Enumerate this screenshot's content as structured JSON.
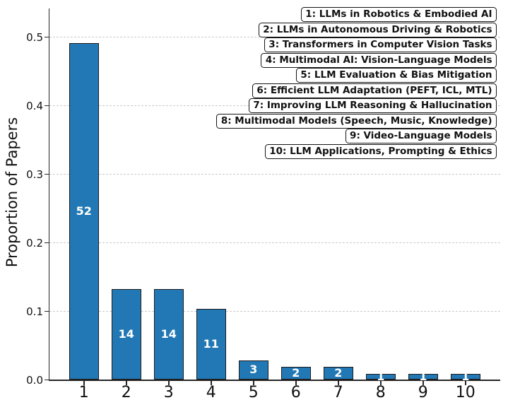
{
  "chart_data": {
    "type": "bar",
    "title": "",
    "xlabel": "",
    "ylabel": "Proportion of Papers",
    "categories": [
      "1",
      "2",
      "3",
      "4",
      "5",
      "6",
      "7",
      "8",
      "9",
      "10"
    ],
    "counts": [
      52,
      14,
      14,
      11,
      3,
      2,
      2,
      1,
      1,
      1
    ],
    "proportions": [
      0.491,
      0.132,
      0.132,
      0.104,
      0.028,
      0.019,
      0.019,
      0.009,
      0.009,
      0.009
    ],
    "bar_labels": [
      "52",
      "14",
      "14",
      "11",
      "3",
      "2",
      "2",
      "1",
      "1",
      "1"
    ],
    "yticks": [
      "0.0",
      "0.1",
      "0.2",
      "0.3",
      "0.4",
      "0.5"
    ],
    "ytick_values": [
      0.0,
      0.1,
      0.2,
      0.3,
      0.4,
      0.5
    ],
    "ylim": [
      0.0,
      0.54
    ],
    "grid": "horizontal-dashed",
    "legend_position": "upper-right",
    "legend": [
      "1: LLMs in Robotics & Embodied AI",
      "2: LLMs in Autonomous Driving & Robotics",
      "3: Transformers in Computer Vision Tasks",
      "4: Multimodal AI: Vision-Language Models",
      "5: LLM Evaluation & Bias Mitigation",
      "6: Efficient LLM Adaptation (PEFT, ICL, MTL)",
      "7: Improving LLM Reasoning & Hallucination",
      "8: Multimodal Models (Speech, Music, Knowledge)",
      "9: Video-Language Models",
      "10: LLM Applications, Prompting & Ethics"
    ],
    "colors": {
      "bar_fill": "#2278b5",
      "bar_edge": "#1a1a1a",
      "bar_label_text": "#ffffff",
      "grid": "#cbcbcb",
      "axis": "#262626",
      "text": "#111111",
      "legend_bg": "#ffffff",
      "legend_border": "#141414"
    }
  }
}
